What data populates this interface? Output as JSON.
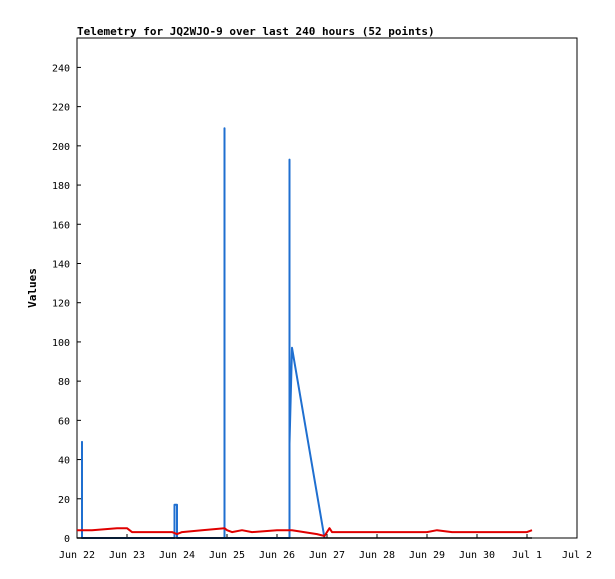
{
  "chart_data": {
    "type": "line",
    "title": "Telemetry for JQ2WJO-9 over last 240 hours (52 points)",
    "xlabel": "",
    "ylabel": "Values",
    "x_ticks": [
      "Jun 22",
      "Jun 23",
      "Jun 24",
      "Jun 25",
      "Jun 26",
      "Jun 27",
      "Jun 28",
      "Jun 29",
      "Jun 30",
      "Jul 1",
      "Jul 2"
    ],
    "y_ticks": [
      0,
      20,
      40,
      60,
      80,
      100,
      120,
      140,
      160,
      180,
      200,
      220,
      240
    ],
    "ylim": [
      0,
      255
    ],
    "xlim_days": [
      0,
      10
    ],
    "grid": false,
    "series": [
      {
        "color": "#1f6fd0",
        "points": [
          [
            0.1,
            0
          ],
          [
            0.1,
            49
          ],
          [
            0.1,
            0
          ],
          [
            1.95,
            0
          ],
          [
            1.95,
            17
          ],
          [
            2.0,
            17
          ],
          [
            2.0,
            0
          ],
          [
            2.95,
            0
          ],
          [
            2.95,
            209
          ],
          [
            2.95,
            0
          ],
          [
            4.25,
            0
          ],
          [
            4.25,
            193
          ],
          [
            4.25,
            48
          ],
          [
            4.3,
            97
          ],
          [
            4.95,
            0
          ]
        ]
      },
      {
        "color": "#e00000",
        "points": [
          [
            0.0,
            4
          ],
          [
            0.3,
            4
          ],
          [
            0.8,
            5
          ],
          [
            1.0,
            5
          ],
          [
            1.1,
            3
          ],
          [
            1.9,
            3
          ],
          [
            2.0,
            2
          ],
          [
            2.1,
            3
          ],
          [
            2.5,
            4
          ],
          [
            2.95,
            5
          ],
          [
            3.0,
            4
          ],
          [
            3.1,
            3
          ],
          [
            3.3,
            4
          ],
          [
            3.5,
            3
          ],
          [
            4.0,
            4
          ],
          [
            4.3,
            4
          ],
          [
            4.8,
            2
          ],
          [
            4.95,
            1
          ],
          [
            5.0,
            3
          ],
          [
            5.05,
            5
          ],
          [
            5.1,
            3
          ],
          [
            6.0,
            3
          ],
          [
            7.0,
            3
          ],
          [
            7.2,
            4
          ],
          [
            7.5,
            3
          ],
          [
            8.0,
            3
          ],
          [
            9.0,
            3
          ],
          [
            9.1,
            4
          ]
        ]
      },
      {
        "color": "#000000",
        "points": [
          [
            0.0,
            0
          ],
          [
            9.1,
            0
          ]
        ]
      }
    ]
  }
}
